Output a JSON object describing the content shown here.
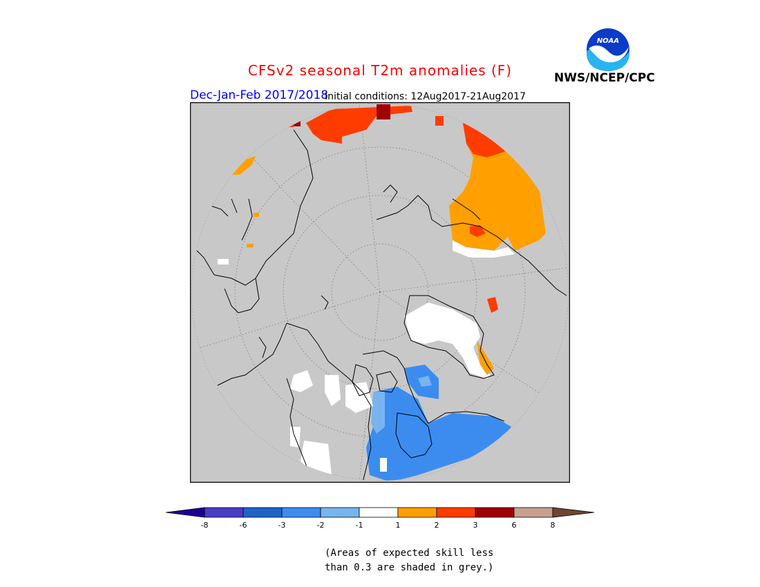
{
  "header": {
    "title": "CFSv2 seasonal T2m anomalies (F)",
    "season": "Dec-Jan-Feb 2017/2018",
    "initial_conditions": "Initial conditions: 12Aug2017-21Aug2017",
    "agency": "NWS/NCEP/CPC",
    "logo_text": "NOAA"
  },
  "colors": {
    "title": "#ff0000",
    "season": "#0000ff",
    "skill_mask": "#c8c8c8",
    "land_outline": "#000000"
  },
  "legend": {
    "labels": [
      "-8",
      "-6",
      "-3",
      "-2",
      "-1",
      "1",
      "2",
      "3",
      "6",
      "8"
    ],
    "bins": [
      {
        "range": "< -8",
        "color": "#1e0096"
      },
      {
        "range": "-8 to -6",
        "color": "#4b3cc8"
      },
      {
        "range": "-6 to -3",
        "color": "#1e64c8"
      },
      {
        "range": "-3 to -2",
        "color": "#3c8cf0"
      },
      {
        "range": "-2 to -1",
        "color": "#78b4f0"
      },
      {
        "range": "-1 to 1",
        "color": "#ffffff"
      },
      {
        "range": "1 to 2",
        "color": "#ffa000"
      },
      {
        "range": "2 to 3",
        "color": "#ff3c00"
      },
      {
        "range": "3 to 6",
        "color": "#a00000"
      },
      {
        "range": "6 to 8",
        "color": "#c8a090"
      },
      {
        "range": "> 8",
        "color": "#6e4632"
      }
    ]
  },
  "note": {
    "line1": "(Areas of expected skill less",
    "line2": "than 0.3 are shaded in grey.)"
  },
  "map": {
    "projection": "north-polar-stereographic",
    "regions": [
      {
        "name": "siberia-coast",
        "anomaly_bin": "2 to 3"
      },
      {
        "name": "europe-scandinavia",
        "anomaly_bin": "1 to 2"
      },
      {
        "name": "greenland",
        "anomaly_bin": "-1 to 1"
      },
      {
        "name": "canada-hudson-bay",
        "anomaly_bin": "-3 to -2"
      },
      {
        "name": "alaska",
        "anomaly_bin": "-1 to 1"
      }
    ]
  }
}
